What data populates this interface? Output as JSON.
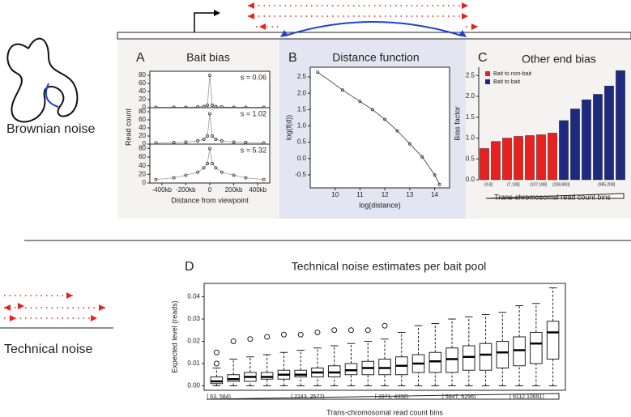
{
  "figure": {
    "left_labels": [
      "Brownian noise",
      "Technical noise"
    ]
  },
  "chart_data": [
    {
      "type": "scatter",
      "panel": "A",
      "title": "Bait bias",
      "ylabel": "Read count",
      "xlabel": "Distance from viewpoint",
      "xlim": [
        -500,
        500
      ],
      "ylim": [
        0,
        90
      ],
      "xticks": [
        {
          "value": -400,
          "label": "-400kb"
        },
        {
          "value": -200,
          "label": "-200kb"
        },
        0,
        {
          "value": 200,
          "label": "200kb"
        },
        {
          "value": 400,
          "label": "400kb"
        }
      ],
      "yticks": [
        0,
        20,
        40,
        60,
        80
      ],
      "x": [
        -450,
        -300,
        -200,
        -100,
        -50,
        -20,
        0,
        20,
        50,
        100,
        200,
        300,
        450
      ],
      "panels": [
        {
          "label": "s = 0.06",
          "values": [
            1,
            1,
            1,
            2,
            3,
            6,
            80,
            6,
            3,
            2,
            1,
            1,
            1
          ]
        },
        {
          "label": "s = 1.02",
          "values": [
            3,
            4,
            5,
            8,
            12,
            20,
            75,
            20,
            12,
            8,
            5,
            4,
            3
          ]
        },
        {
          "label": "s = 5.32",
          "values": [
            8,
            12,
            18,
            25,
            35,
            45,
            80,
            45,
            35,
            25,
            18,
            12,
            8
          ]
        }
      ]
    },
    {
      "type": "scatter",
      "panel": "B",
      "title": "Distance function",
      "ylabel": "log(f(d))",
      "xlabel": "log(distance)",
      "xlim": [
        9,
        14.6
      ],
      "ylim": [
        -0.9,
        2.8
      ],
      "xticks": [
        10,
        11,
        12,
        13,
        14
      ],
      "yticks": [
        -0.5,
        {
          "value": 0,
          "label": "0.0"
        },
        0.5,
        {
          "value": 1,
          "label": "1.0"
        },
        1.5,
        {
          "value": 2,
          "label": "2.0"
        },
        2.5
      ],
      "x": [
        9.3,
        10.3,
        11,
        11.5,
        12,
        12.5,
        13,
        13.5,
        14,
        14.2
      ],
      "values": [
        2.65,
        2.1,
        1.75,
        1.5,
        1.2,
        0.85,
        0.45,
        0.05,
        -0.5,
        -0.8
      ]
    },
    {
      "type": "bar",
      "panel": "C",
      "title": "Other end bias",
      "ylabel": "Bias factor",
      "xlabel": "Trans-chromosomal read count bins",
      "ylim": [
        0,
        2.7
      ],
      "yticks": [
        {
          "value": 0,
          "label": "0.0"
        },
        0.5,
        {
          "value": 1,
          "label": "1.0"
        },
        1.5,
        {
          "value": 2,
          "label": "2.0"
        },
        2.5
      ],
      "legend": "upper left",
      "categories": [
        "(0,8]",
        null,
        "(7,108]",
        null,
        "(107,188]",
        null,
        "(238,890]",
        null,
        null,
        null,
        "(985,208]",
        null,
        null
      ],
      "series": [
        {
          "name": "Bait to non-bait",
          "color": "#e8201e",
          "values": [
            0.75,
            0.92,
            1.0,
            1.04,
            1.06,
            1.08,
            1.12,
            null,
            null,
            null,
            null,
            null,
            null
          ]
        },
        {
          "name": "Bait to bait",
          "color": "#1d2a80",
          "values": [
            null,
            null,
            null,
            null,
            null,
            null,
            null,
            1.42,
            1.7,
            1.92,
            2.05,
            2.25,
            2.62
          ]
        }
      ]
    },
    {
      "type": "box",
      "panel": "D",
      "title": "Technical noise estimates per bait pool",
      "ylabel": "Expected level (reads)",
      "xlabel": "Trans-chromosomal read count bins",
      "ylim": [
        -0.002,
        0.046
      ],
      "yticks": [
        {
          "value": 0,
          "label": "0.00"
        },
        0.01,
        0.02,
        0.03,
        0.04
      ],
      "categories": [
        "[ 63, 584)",
        null,
        null,
        null,
        null,
        "[ 2243, 2577)",
        null,
        null,
        null,
        null,
        "[ 3971, 4332)",
        null,
        null,
        null,
        "[ 5847, 6296)",
        null,
        null,
        null,
        "[ 9112,10691)",
        null,
        null
      ],
      "boxes": [
        {
          "low": 0,
          "q1": 0.001,
          "median": 0.002,
          "q3": 0.004,
          "high": 0.008,
          "outliers": [
            0.01,
            0.015
          ]
        },
        {
          "low": 0,
          "q1": 0.002,
          "median": 0.003,
          "q3": 0.005,
          "high": 0.012,
          "outliers": [
            0.02
          ]
        },
        {
          "low": 0,
          "q1": 0.002,
          "median": 0.004,
          "q3": 0.006,
          "high": 0.013,
          "outliers": [
            0.021
          ]
        },
        {
          "low": 0,
          "q1": 0.003,
          "median": 0.004,
          "q3": 0.006,
          "high": 0.014,
          "outliers": [
            0.022
          ]
        },
        {
          "low": 0,
          "q1": 0.003,
          "median": 0.005,
          "q3": 0.007,
          "high": 0.015,
          "outliers": [
            0.023
          ]
        },
        {
          "low": 0,
          "q1": 0.004,
          "median": 0.005,
          "q3": 0.007,
          "high": 0.016,
          "outliers": [
            0.023
          ]
        },
        {
          "low": 0,
          "q1": 0.004,
          "median": 0.006,
          "q3": 0.008,
          "high": 0.017,
          "outliers": [
            0.024
          ]
        },
        {
          "low": 0,
          "q1": 0.004,
          "median": 0.006,
          "q3": 0.009,
          "high": 0.018,
          "outliers": [
            0.025
          ]
        },
        {
          "low": 0,
          "q1": 0.005,
          "median": 0.007,
          "q3": 0.01,
          "high": 0.019,
          "outliers": [
            0.025
          ]
        },
        {
          "low": 0,
          "q1": 0.005,
          "median": 0.008,
          "q3": 0.011,
          "high": 0.02,
          "outliers": [
            0.025
          ]
        },
        {
          "low": 0,
          "q1": 0.005,
          "median": 0.008,
          "q3": 0.012,
          "high": 0.021,
          "outliers": [
            0.027
          ]
        },
        {
          "low": 0,
          "q1": 0.005,
          "median": 0.009,
          "q3": 0.013,
          "high": 0.024
        },
        {
          "low": 0,
          "q1": 0.006,
          "median": 0.01,
          "q3": 0.014,
          "high": 0.027
        },
        {
          "low": 0,
          "q1": 0.006,
          "median": 0.011,
          "q3": 0.015,
          "high": 0.028
        },
        {
          "low": 0,
          "q1": 0.006,
          "median": 0.012,
          "q3": 0.017,
          "high": 0.03
        },
        {
          "low": 0,
          "q1": 0.007,
          "median": 0.013,
          "q3": 0.018,
          "high": 0.031
        },
        {
          "low": 0,
          "q1": 0.007,
          "median": 0.014,
          "q3": 0.019,
          "high": 0.032
        },
        {
          "low": 0,
          "q1": 0.008,
          "median": 0.015,
          "q3": 0.02,
          "high": 0.033
        },
        {
          "low": 0,
          "q1": 0.009,
          "median": 0.016,
          "q3": 0.022,
          "high": 0.036
        },
        {
          "low": 0,
          "q1": 0.01,
          "median": 0.019,
          "q3": 0.024,
          "high": 0.037
        },
        {
          "low": 0,
          "q1": 0.012,
          "median": 0.024,
          "q3": 0.029,
          "high": 0.044
        }
      ]
    }
  ]
}
